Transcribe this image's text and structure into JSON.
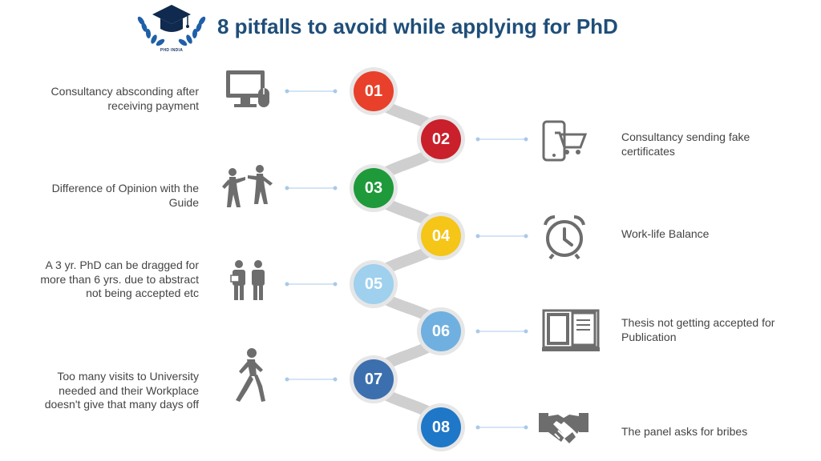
{
  "header": {
    "title": "8 pitfalls to avoid while applying for PhD",
    "logo_text": "PHD INDIA",
    "logo_icon": "graduation-cap-laurel-icon"
  },
  "steps": [
    {
      "num": "01",
      "text": "Consultancy absconding after receiving payment",
      "icon": "computer-icon",
      "color": "#e8402a"
    },
    {
      "num": "02",
      "text": "Consultancy sending fake certificates",
      "icon": "mobile-cart-icon",
      "color": "#c9202b"
    },
    {
      "num": "03",
      "text": "Difference of Opinion with the Guide",
      "icon": "arguing-people-icon",
      "color": "#1e9a3a"
    },
    {
      "num": "04",
      "text": "Work-life Balance",
      "icon": "alarm-clock-icon",
      "color": "#f5c518"
    },
    {
      "num": "05",
      "text": "A 3 yr. PhD can be dragged for more than 6 yrs. due to abstract not being accepted etc",
      "icon": "two-people-icon",
      "color": "#9fd0ee"
    },
    {
      "num": "06",
      "text": "Thesis not getting accepted for Publication",
      "icon": "open-book-icon",
      "color": "#6fb0e0"
    },
    {
      "num": "07",
      "text": "Too many visits to University needed and their Workplace doesn't give that many days off",
      "icon": "walking-person-icon",
      "color": "#3c6fae"
    },
    {
      "num": "08",
      "text": "The panel asks for bribes",
      "icon": "handshake-icon",
      "color": "#1f77c8"
    }
  ]
}
